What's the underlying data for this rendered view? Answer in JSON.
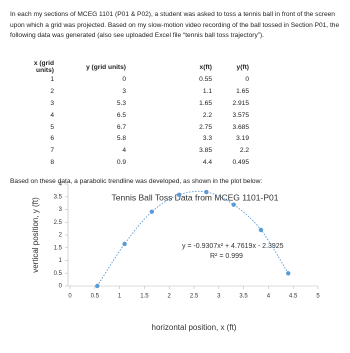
{
  "intro": "In each my sections of MCEG 1101 (P01 & P02), a student was asked to toss a tennis ball in front of the screen upon which a grid was projected.  Based on my slow-motion video recording of the ball tossed in Section P01, the following data was generated (also see uploaded Excel file “tennis ball toss trajectory”).",
  "table": {
    "headers": [
      "x (grid units)",
      "y (grid units)",
      "x(ft)",
      "y(ft)"
    ],
    "rows": [
      [
        1,
        0,
        0.55,
        0
      ],
      [
        2,
        3,
        1.1,
        1.65
      ],
      [
        3,
        5.3,
        1.65,
        2.915
      ],
      [
        4,
        6.5,
        2.2,
        3.575
      ],
      [
        5,
        6.7,
        2.75,
        3.685
      ],
      [
        6,
        5.8,
        3.3,
        3.19
      ],
      [
        7,
        4,
        3.85,
        2.2
      ],
      [
        8,
        0.9,
        4.4,
        0.495
      ]
    ]
  },
  "caption": "Based on these data, a parabolic trendline was developed, as shown in the plot below:",
  "chart_data": {
    "type": "scatter",
    "title": "Tennis Ball Toss Data from MCEG 1101-P01",
    "x_label": "horizontal position, x (ft)",
    "y_label": "vertical position, y (ft)",
    "x": [
      0.55,
      1.1,
      1.65,
      2.2,
      2.75,
      3.3,
      3.85,
      4.4
    ],
    "series": [
      {
        "color": "#5b9bd5",
        "values": [
          0,
          1.65,
          2.915,
          3.575,
          3.685,
          3.19,
          2.2,
          0.495
        ]
      }
    ],
    "xlim": [
      0,
      5
    ],
    "xticks": [
      0,
      0.5,
      1,
      1.5,
      2,
      2.5,
      3,
      3.5,
      4,
      4.5,
      5
    ],
    "ylim": [
      0,
      4
    ],
    "yticks": [
      0,
      0.5,
      1,
      1.5,
      2,
      2.5,
      3,
      3.5,
      4
    ],
    "annotations": [
      "y = -0.9307x² + 4.7619x - 2.3925",
      "R² = 0.999"
    ]
  }
}
